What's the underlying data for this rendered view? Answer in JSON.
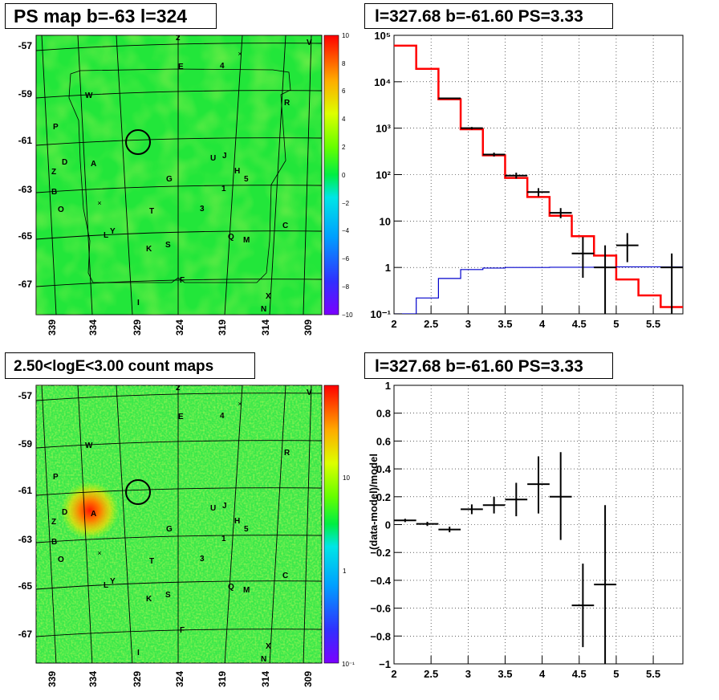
{
  "panels": {
    "ps_map": {
      "title": "PS map b=-63 l=324",
      "y_ticks": [
        "-57",
        "-59",
        "-61",
        "-63",
        "-65",
        "-67"
      ],
      "x_ticks": [
        "339",
        "334",
        "329",
        "324",
        "319",
        "314",
        "309"
      ],
      "colorbar_ticks": [
        "10",
        "8",
        "6",
        "4",
        "2",
        "0",
        "−2",
        "−4",
        "−6",
        "−8",
        "−10"
      ]
    },
    "spectrum": {
      "title": "l=327.68 b=-61.60 PS=3.33"
    },
    "count_map": {
      "title": "2.50<logE<3.00 count maps",
      "y_ticks": [
        "-57",
        "-59",
        "-61",
        "-63",
        "-65",
        "-67"
      ],
      "x_ticks": [
        "339",
        "334",
        "329",
        "324",
        "319",
        "314",
        "309"
      ],
      "colorbar_ticks": [
        "10",
        "1",
        "10⁻¹"
      ]
    },
    "residual": {
      "title": "l=327.68 b=-61.60 PS=3.33"
    }
  },
  "source_labels": [
    {
      "t": "2"
    },
    {
      "t": "V"
    },
    {
      "t": "E"
    },
    {
      "t": "4"
    },
    {
      "t": "W"
    },
    {
      "t": "R"
    },
    {
      "t": "P"
    },
    {
      "t": "U"
    },
    {
      "t": "J"
    },
    {
      "t": "D"
    },
    {
      "t": "A"
    },
    {
      "t": "Z"
    },
    {
      "t": "G"
    },
    {
      "t": "H"
    },
    {
      "t": "5"
    },
    {
      "t": "B"
    },
    {
      "t": "1"
    },
    {
      "t": "O"
    },
    {
      "t": "T"
    },
    {
      "t": "3"
    },
    {
      "t": "C"
    },
    {
      "t": "L"
    },
    {
      "t": "Y"
    },
    {
      "t": "Q"
    },
    {
      "t": "M"
    },
    {
      "t": "K"
    },
    {
      "t": "S"
    },
    {
      "t": "F"
    },
    {
      "t": "X"
    },
    {
      "t": "I"
    },
    {
      "t": "N"
    }
  ],
  "chart_data": [
    {
      "type": "line",
      "title": "l=327.68 b=-61.60 PS=3.33",
      "xlabel": "",
      "ylabel": "",
      "xlim": [
        2,
        5.9
      ],
      "ylim": [
        0.1,
        100000
      ],
      "yscale": "log",
      "x_ticks": [
        "2",
        "2.5",
        "3",
        "3.5",
        "4",
        "4.5",
        "5",
        "5.5"
      ],
      "y_ticks": [
        "10⁻¹",
        "1",
        "10",
        "10²",
        "10³",
        "10⁴",
        "10⁵"
      ],
      "grid": true,
      "series": [
        {
          "color": "#ff0000",
          "style": "step",
          "edges": [
            2.0,
            2.3,
            2.6,
            2.9,
            3.2,
            3.5,
            3.8,
            4.1,
            4.4,
            4.7,
            5.0,
            5.3,
            5.6,
            5.9
          ],
          "values": [
            60000,
            19000,
            4200,
            950,
            260,
            85,
            33,
            13,
            4.7,
            1.8,
            0.55,
            0.25,
            0.14
          ]
        },
        {
          "color": "#0000cc",
          "style": "step",
          "edges": [
            2.0,
            2.3,
            2.6,
            2.9,
            3.2,
            3.5,
            3.8,
            4.1,
            4.4,
            4.7,
            5.0,
            5.3,
            5.6,
            5.9
          ],
          "values": [
            0.1,
            0.22,
            0.58,
            0.9,
            0.97,
            1.0,
            1.0,
            1.01,
            1.01,
            1.02,
            1.03,
            1.03,
            1.03
          ]
        },
        {
          "color": "#000000",
          "style": "errorbar",
          "points": [
            {
              "x": 2.75,
              "y": 4400,
              "lo": 4250,
              "hi": 4550
            },
            {
              "x": 3.05,
              "y": 1000,
              "lo": 940,
              "hi": 1060
            },
            {
              "x": 3.35,
              "y": 270,
              "lo": 245,
              "hi": 297
            },
            {
              "x": 3.65,
              "y": 95,
              "lo": 82,
              "hi": 110
            },
            {
              "x": 3.95,
              "y": 42,
              "lo": 34,
              "hi": 51
            },
            {
              "x": 4.25,
              "y": 15,
              "lo": 11.5,
              "hi": 19
            },
            {
              "x": 4.55,
              "y": 2,
              "lo": 0.6,
              "hi": 4.5
            },
            {
              "x": 4.85,
              "y": 1,
              "lo": 0.1,
              "hi": 3
            },
            {
              "x": 5.15,
              "y": 3,
              "lo": 1.3,
              "hi": 5.5
            },
            {
              "x": 5.75,
              "y": 1,
              "lo": 0.1,
              "hi": 2
            }
          ]
        }
      ]
    },
    {
      "type": "scatter",
      "title": "l=327.68 b=-61.60 PS=3.33",
      "xlabel": "",
      "ylabel": "(data-model)/model",
      "xlim": [
        2,
        5.9
      ],
      "ylim": [
        -1,
        1
      ],
      "x_ticks": [
        "2",
        "2.5",
        "3",
        "3.5",
        "4",
        "4.5",
        "5",
        "5.5"
      ],
      "y_ticks": [
        "−1",
        "−0.8",
        "−0.6",
        "−0.4",
        "−0.2",
        "0",
        "0.2",
        "0.4",
        "0.6",
        "0.8",
        "1"
      ],
      "grid": true,
      "series": [
        {
          "color": "#000000",
          "style": "errorbar",
          "points": [
            {
              "x": 2.15,
              "y": 0.03,
              "lo": 0.018,
              "hi": 0.042,
              "xw": 0.15
            },
            {
              "x": 2.45,
              "y": 0.005,
              "lo": -0.01,
              "hi": 0.02,
              "xw": 0.15
            },
            {
              "x": 2.75,
              "y": -0.035,
              "lo": -0.055,
              "hi": -0.015,
              "xw": 0.15
            },
            {
              "x": 3.05,
              "y": 0.11,
              "lo": 0.075,
              "hi": 0.145,
              "xw": 0.15
            },
            {
              "x": 3.35,
              "y": 0.14,
              "lo": 0.08,
              "hi": 0.2,
              "xw": 0.15
            },
            {
              "x": 3.65,
              "y": 0.18,
              "lo": 0.06,
              "hi": 0.3,
              "xw": 0.15
            },
            {
              "x": 3.95,
              "y": 0.29,
              "lo": 0.08,
              "hi": 0.49,
              "xw": 0.15
            },
            {
              "x": 4.25,
              "y": 0.2,
              "lo": -0.11,
              "hi": 0.52,
              "xw": 0.15
            },
            {
              "x": 4.55,
              "y": -0.58,
              "lo": -0.88,
              "hi": -0.28,
              "xw": 0.15
            },
            {
              "x": 4.85,
              "y": -0.43,
              "lo": -1.0,
              "hi": 0.14,
              "xw": 0.15
            }
          ]
        }
      ]
    }
  ]
}
